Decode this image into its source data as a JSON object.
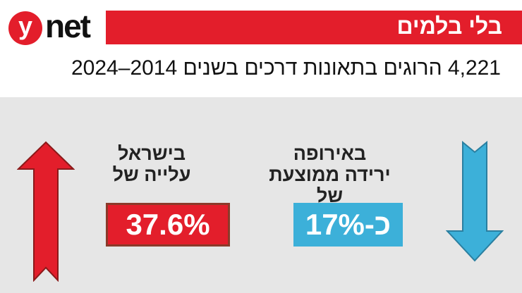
{
  "logo": {
    "letter": "y",
    "text": "net"
  },
  "banner": {
    "title": "בלי בלמים"
  },
  "headline": "4,221 הרוגים בתאונות דרכים בשנים 2014–2024",
  "israel": {
    "line1": "בישראל",
    "line2": "עלייה של",
    "value": "37.6%",
    "color": "#e31e2b"
  },
  "europe": {
    "line1": "באירופה",
    "line2": "ירידה ממוצעת של",
    "value": "כ-17%",
    "color": "#3cb0d9"
  }
}
